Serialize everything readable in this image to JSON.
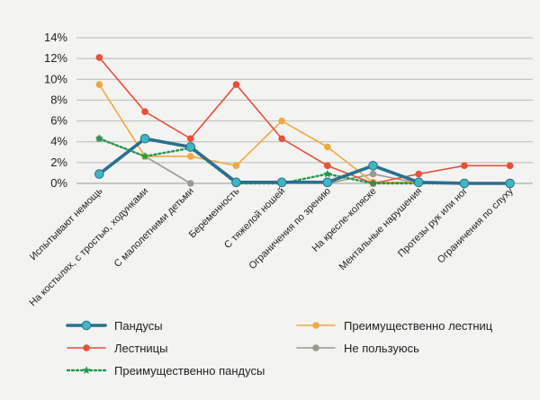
{
  "chart_data": {
    "type": "line",
    "categories": [
      "Испытывают немощь",
      "На костылях, с тростью, ходунками",
      "С малолетними детьми",
      "Беременность",
      "С тяжелой ношей",
      "Ограничения по зрению",
      "На кресле-коляске",
      "Ментальные нарушения",
      "Протезы рук или ног",
      "Ограничения по слуху"
    ],
    "y_tick_labels": [
      "0%",
      "2%",
      "4%",
      "6%",
      "8%",
      "10%",
      "12%",
      "14%"
    ],
    "ylim": [
      0,
      14
    ],
    "y_unit": "%",
    "grid": true,
    "legend_position": "bottom",
    "series": [
      {
        "name": "Пандусы",
        "color": "#2a6f8f",
        "marker_color": "#3fb7c0",
        "style": "thick",
        "marker": "circle",
        "values": [
          0.9,
          4.3,
          3.5,
          0.1,
          0.1,
          0.1,
          1.7,
          0.1,
          0,
          0
        ]
      },
      {
        "name": "Преимущественно лестниц",
        "color": "#f0a840",
        "marker_color": "#f0a840",
        "style": "solid",
        "marker": "circle",
        "values": [
          9.5,
          2.6,
          2.6,
          1.7,
          6.0,
          3.5,
          0.1,
          0.1,
          0,
          0
        ]
      },
      {
        "name": "Лестницы",
        "color": "#e8503a",
        "marker_color": "#e8503a",
        "style": "solid",
        "marker": "circle",
        "values": [
          12.1,
          6.9,
          4.3,
          9.5,
          4.3,
          1.7,
          0,
          0.9,
          1.7,
          1.7
        ]
      },
      {
        "name": "Не пользуюсь",
        "color": "#9a9a90",
        "marker_color": "#9a9a90",
        "style": "solid",
        "marker": "circle",
        "values": [
          4.3,
          2.6,
          0,
          null,
          null,
          0,
          0.9,
          0,
          null,
          null
        ]
      },
      {
        "name": "Преимущественно пандусы",
        "color": "#1f9a4a",
        "marker_color": "#1f9a4a",
        "style": "dotted",
        "marker": "star",
        "values": [
          4.3,
          2.6,
          3.4,
          0,
          0,
          0.9,
          0,
          0,
          0,
          0
        ]
      }
    ]
  }
}
